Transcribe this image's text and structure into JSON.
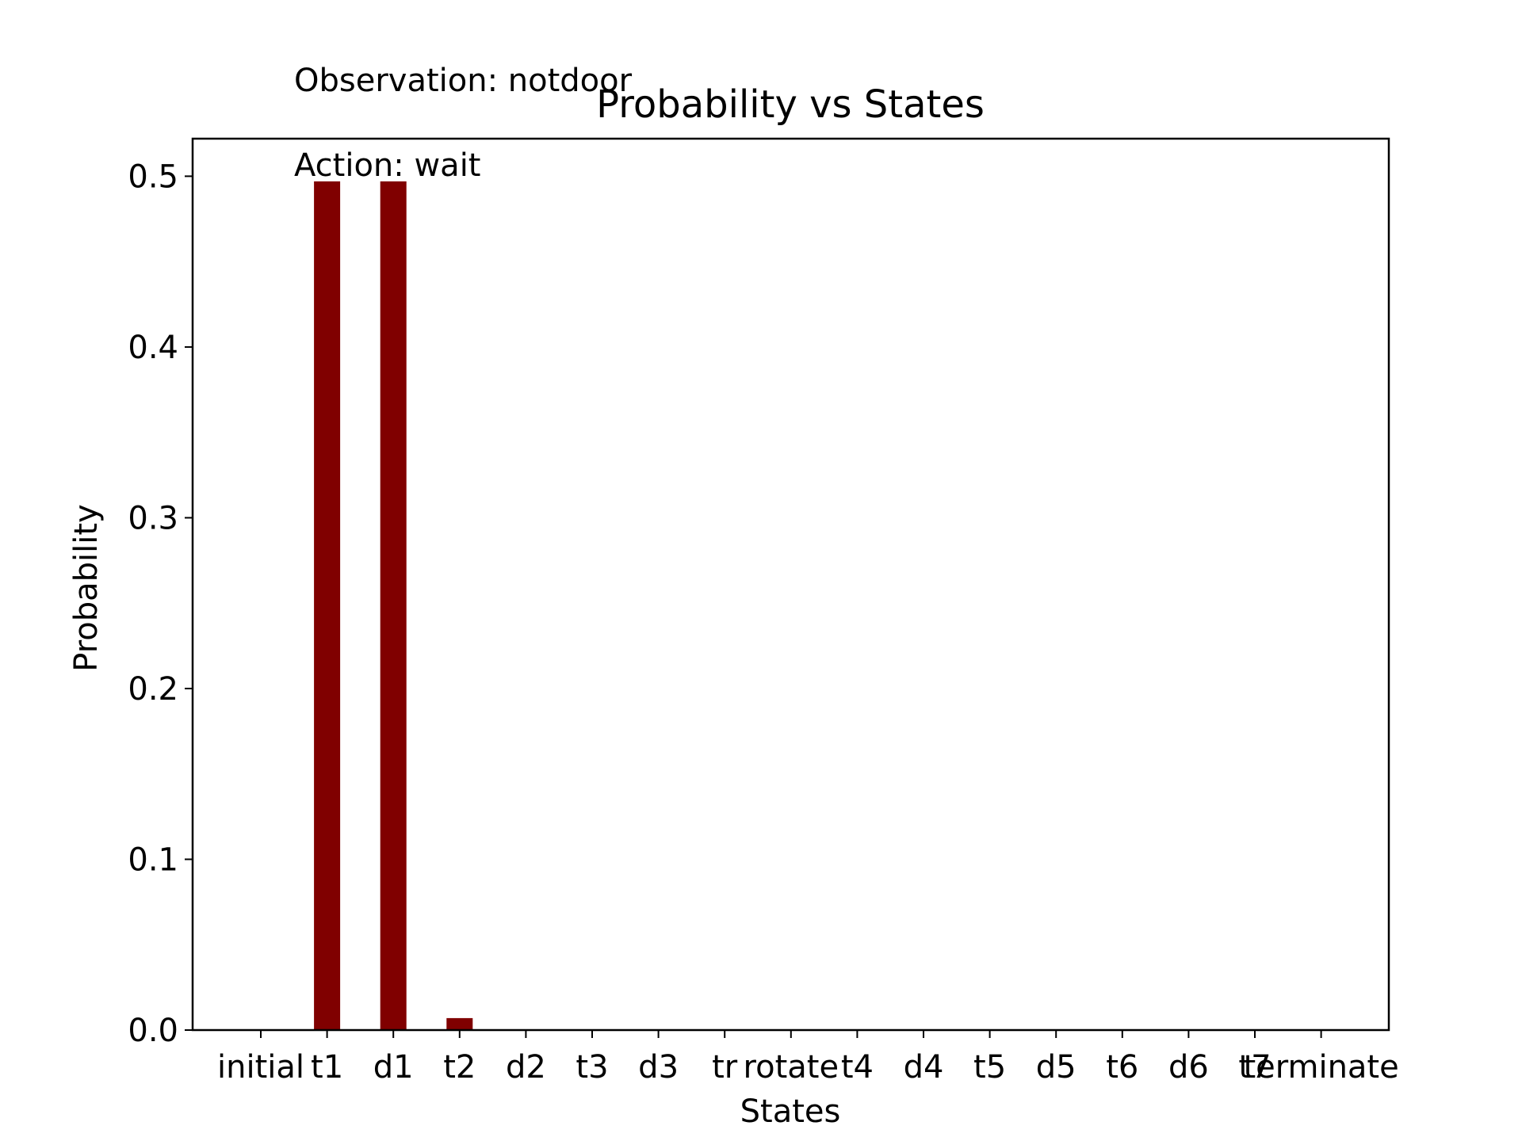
{
  "chart_data": {
    "type": "bar",
    "title": "Probability vs States",
    "xlabel": "States",
    "ylabel": "Probability",
    "annotations": [
      "Observation: notdoor",
      "Action: wait"
    ],
    "categories": [
      "initial",
      "t1",
      "d1",
      "t2",
      "d2",
      "t3",
      "d3",
      "tr",
      "rotate",
      "t4",
      "d4",
      "t5",
      "d5",
      "t6",
      "d6",
      "t7",
      "terminate"
    ],
    "values": [
      0.0,
      0.497,
      0.497,
      0.007,
      0.0,
      0.0,
      0.0,
      0.0,
      0.0,
      0.0,
      0.0,
      0.0,
      0.0,
      0.0,
      0.0,
      0.0,
      0.0
    ],
    "yticks": [
      "0.0",
      "0.1",
      "0.2",
      "0.3",
      "0.4",
      "0.5"
    ],
    "ylim": [
      0,
      0.522
    ],
    "bar_color": "#800000",
    "grid": false,
    "legend": "none"
  }
}
